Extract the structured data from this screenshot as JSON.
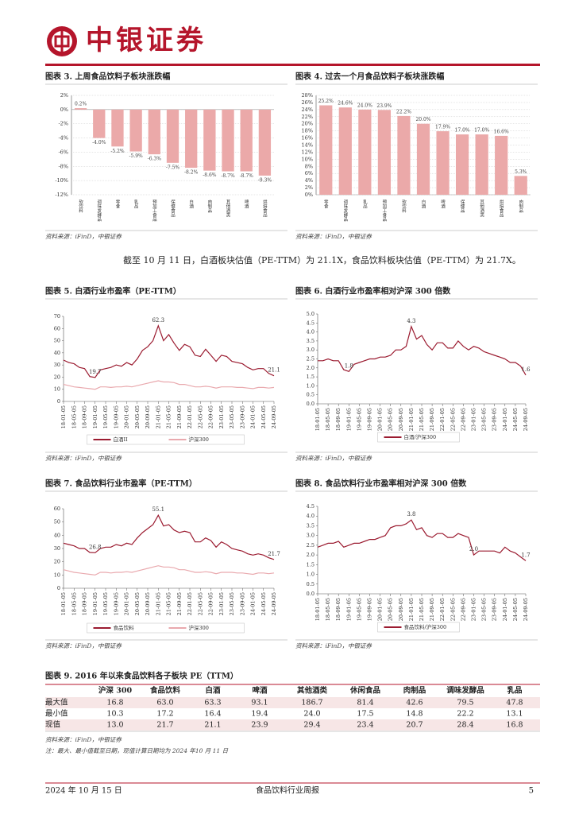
{
  "header": {
    "brand": "中银证券"
  },
  "paragraph": "截至 10 月 11 日，白酒板块估值（PE-TTM）为 21.1X，食品饮料板块估值（PE-TTM）为 21.7X。",
  "chart_data": [
    {
      "type": "bar",
      "title": "图表 3. 上周食品饮料子板块涨跌幅",
      "source": "资料来源：iFinD，中银证券",
      "color": "#eba9a9",
      "grid": true,
      "categories": [
        "软饮料",
        "调味发酵品",
        "零食",
        "乳品",
        "预加工食品",
        "保健食品",
        "白酒",
        "肉制品",
        "其他酒类",
        "啤酒",
        "烘焙食品"
      ],
      "values": [
        0.2,
        -4.0,
        -5.2,
        -5.9,
        -6.3,
        -7.5,
        -8.2,
        -8.6,
        -8.7,
        -8.7,
        -9.3
      ],
      "value_labels": [
        "0.2%",
        "-4.0%",
        "-5.2%",
        "-5.9%",
        "-6.3%",
        "-7.5%",
        "-8.2%",
        "-8.6%",
        "-8.7%",
        "-8.7%",
        "-9.3%"
      ],
      "ylim": [
        -12,
        2
      ],
      "yticks": [
        {
          "value": -12,
          "label": "-12%"
        },
        {
          "value": -10,
          "label": "-10%"
        },
        {
          "value": -8,
          "label": "-8%"
        },
        {
          "value": -6,
          "label": "-6%"
        },
        {
          "value": -4,
          "label": "-4%"
        },
        {
          "value": -2,
          "label": "-2%"
        },
        {
          "value": 0,
          "label": "0%"
        },
        {
          "value": 2,
          "label": "2%"
        }
      ]
    },
    {
      "type": "bar",
      "title": "图表 4. 过去一个月食品饮料子板块涨跌幅",
      "source": "资料来源：iFinD，中银证券",
      "color": "#eba9a9",
      "grid": true,
      "categories": [
        "零食",
        "调味发酵品",
        "乳品",
        "预加工食品",
        "软饮料",
        "白酒",
        "啤酒",
        "保健品",
        "其他酒类",
        "烘焙食品",
        "肉制品"
      ],
      "values": [
        25.2,
        24.6,
        24.0,
        23.9,
        22.2,
        20.0,
        17.9,
        17.0,
        17.0,
        16.6,
        5.3
      ],
      "value_labels": [
        "25.2%",
        "24.6%",
        "24.0%",
        "23.9%",
        "22.2%",
        "20.0%",
        "17.9%",
        "17.0%",
        "17.0%",
        "16.6%",
        "5.3%"
      ],
      "ylim": [
        0,
        28
      ],
      "yticks": [
        {
          "value": 0,
          "label": "0%"
        },
        {
          "value": 2,
          "label": "2%"
        },
        {
          "value": 4,
          "label": "4%"
        },
        {
          "value": 6,
          "label": "6%"
        },
        {
          "value": 8,
          "label": "8%"
        },
        {
          "value": 10,
          "label": "10%"
        },
        {
          "value": 12,
          "label": "12%"
        },
        {
          "value": 14,
          "label": "14%"
        },
        {
          "value": 16,
          "label": "16%"
        },
        {
          "value": 18,
          "label": "18%"
        },
        {
          "value": 20,
          "label": "20%"
        },
        {
          "value": 22,
          "label": "22%"
        },
        {
          "value": 24,
          "label": "24%"
        },
        {
          "value": 26,
          "label": "26%"
        },
        {
          "value": 28,
          "label": "28%"
        }
      ]
    },
    {
      "type": "line",
      "title": "图表 5. 白酒行业市盈率（PE-TTM）",
      "source": "资料来源：iFinD，中银证券",
      "grid": false,
      "categories": [
        "18-01-05",
        null,
        "18-05-05",
        null,
        "18-09-05",
        null,
        "19-01-05",
        null,
        "19-05-05",
        null,
        "19-09-05",
        null,
        "20-01-05",
        null,
        "20-05-05",
        null,
        "20-09-05",
        null,
        "21-01-05",
        null,
        "21-05-05",
        null,
        "21-09-05",
        null,
        "22-01-05",
        null,
        "22-05-05",
        null,
        "22-09-05",
        null,
        "23-01-05",
        null,
        "23-05-05",
        null,
        "23-09-05",
        null,
        "24-01-05",
        null,
        "24-05-05",
        null,
        "24-09-05"
      ],
      "ylim": [
        0,
        70
      ],
      "yticks": [
        0,
        10,
        20,
        30,
        40,
        50,
        60,
        70
      ],
      "series": [
        {
          "name": "白酒II",
          "color": "#9b1b30",
          "values": [
            34,
            32,
            31,
            28,
            27,
            20.5,
            19.7,
            26,
            27,
            28,
            30,
            29,
            32,
            30,
            35,
            42,
            45,
            50,
            62.3,
            50,
            55,
            48,
            42,
            47,
            45,
            38,
            37,
            43,
            38,
            33,
            38,
            37,
            33,
            32,
            31,
            28,
            26,
            27,
            27,
            23,
            21.1
          ],
          "value_labels": [
            null,
            null,
            null,
            null,
            null,
            null,
            "19.7",
            null,
            null,
            null,
            null,
            null,
            null,
            null,
            null,
            null,
            null,
            null,
            "62.3",
            null,
            null,
            null,
            null,
            null,
            null,
            null,
            null,
            null,
            null,
            null,
            null,
            null,
            null,
            null,
            null,
            null,
            null,
            null,
            null,
            null,
            "21.1"
          ]
        },
        {
          "name": "沪深300",
          "color": "#e9a9ae",
          "values": [
            14,
            13,
            12,
            11.5,
            11,
            10.5,
            10,
            12,
            12,
            11.5,
            12,
            12,
            12.5,
            12,
            13,
            14,
            15,
            16,
            17,
            16,
            16,
            15.5,
            14,
            14,
            13,
            12,
            12,
            12.5,
            12,
            11,
            12,
            12,
            12,
            11.5,
            11.5,
            11,
            10.5,
            11.5,
            11.5,
            11,
            11.5
          ]
        }
      ]
    },
    {
      "type": "line",
      "title": "图表 6. 白酒行业市盈率相对沪深 300 倍数",
      "source": "资料来源：iFinD，中银证券",
      "grid": false,
      "categories": [
        "18-01-05",
        null,
        "18-05-05",
        null,
        "18-09-05",
        null,
        "19-01-05",
        null,
        "19-05-05",
        null,
        "19-09-05",
        null,
        "20-01-05",
        null,
        "20-05-05",
        null,
        "20-09-05",
        null,
        "21-01-05",
        null,
        "21-05-05",
        null,
        "21-09-05",
        null,
        "22-01-05",
        null,
        "22-05-05",
        null,
        "22-09-05",
        null,
        "23-01-05",
        null,
        "23-05-05",
        null,
        "23-09-05",
        null,
        "24-01-05",
        null,
        "24-05-05",
        null,
        "24-09-05"
      ],
      "ylim": [
        0,
        5
      ],
      "yticks": [
        {
          "value": 0,
          "label": "0.0"
        },
        0.5,
        {
          "value": 1,
          "label": "1.0"
        },
        1.5,
        {
          "value": 2,
          "label": "2.0"
        },
        2.5,
        {
          "value": 3,
          "label": "3.0"
        },
        3.5,
        {
          "value": 4,
          "label": "4.0"
        },
        4.5,
        {
          "value": 5,
          "label": "5.0"
        }
      ],
      "series": [
        {
          "name": "白酒/沪深300",
          "color": "#9b1b30",
          "values": [
            2.4,
            2.4,
            2.5,
            2.4,
            2.4,
            1.9,
            1.8,
            2.2,
            2.3,
            2.4,
            2.5,
            2.5,
            2.6,
            2.6,
            2.7,
            3.0,
            3.0,
            3.2,
            4.3,
            3.6,
            3.8,
            3.3,
            3.0,
            3.4,
            3.4,
            3.1,
            3.1,
            3.5,
            3.2,
            3.0,
            3.2,
            3.1,
            2.9,
            2.8,
            2.7,
            2.6,
            2.5,
            2.3,
            2.3,
            2.1,
            1.6
          ],
          "value_labels": [
            null,
            null,
            null,
            null,
            null,
            null,
            "1.8",
            null,
            null,
            null,
            null,
            null,
            null,
            null,
            null,
            null,
            null,
            null,
            "4.3",
            null,
            null,
            null,
            null,
            null,
            null,
            null,
            null,
            null,
            null,
            null,
            null,
            null,
            null,
            null,
            null,
            null,
            null,
            null,
            null,
            null,
            "1.6"
          ]
        }
      ]
    },
    {
      "type": "line",
      "title": "图表 7. 食品饮料行业市盈率（PE-TTM）",
      "source": "资料来源：iFinD，中银证券",
      "grid": false,
      "categories": [
        "18-01-05",
        null,
        "18-05-05",
        null,
        "18-09-05",
        null,
        "19-01-05",
        null,
        "19-05-05",
        null,
        "19-09-05",
        null,
        "20-01-05",
        null,
        "20-05-05",
        null,
        "20-09-05",
        null,
        "21-01-05",
        null,
        "21-05-05",
        null,
        "21-09-05",
        null,
        "22-01-05",
        null,
        "22-05-05",
        null,
        "22-09-05",
        null,
        "23-01-05",
        null,
        "23-05-05",
        null,
        "23-09-05",
        null,
        "24-01-05",
        null,
        "24-05-05",
        null,
        "24-09-05"
      ],
      "ylim": [
        0,
        60
      ],
      "yticks": [
        0,
        10,
        20,
        30,
        40,
        50,
        60
      ],
      "series": [
        {
          "name": "食品饮料",
          "color": "#9b1b30",
          "values": [
            34,
            33,
            32,
            30,
            30,
            27,
            26.8,
            30,
            31,
            31,
            33,
            32,
            34,
            33,
            38,
            42,
            45,
            48,
            55.1,
            47,
            48,
            44,
            42,
            43,
            42,
            35,
            35,
            38,
            36,
            31,
            35,
            33,
            30,
            29,
            28,
            26,
            25,
            26,
            25,
            23,
            21.7
          ],
          "value_labels": [
            null,
            null,
            null,
            null,
            null,
            null,
            "26.8",
            null,
            null,
            null,
            null,
            null,
            null,
            null,
            null,
            null,
            null,
            null,
            "55.1",
            null,
            null,
            null,
            null,
            null,
            null,
            null,
            null,
            null,
            null,
            null,
            null,
            null,
            null,
            null,
            null,
            null,
            null,
            null,
            null,
            null,
            "21.7"
          ]
        },
        {
          "name": "沪深300",
          "color": "#e9a9ae",
          "values": [
            14,
            13,
            12,
            11.5,
            11,
            10.5,
            10,
            12,
            12,
            11.5,
            12,
            12,
            12.5,
            12,
            13,
            14,
            15,
            16,
            17,
            16,
            16,
            15.5,
            14,
            14,
            13,
            12,
            12,
            12.5,
            12,
            11,
            12,
            12,
            12,
            11.5,
            11.5,
            11,
            10.5,
            11.5,
            11.5,
            11,
            11.5
          ]
        }
      ]
    },
    {
      "type": "line",
      "title": "图表 8. 食品饮料行业市盈率相对沪深 300 倍数",
      "source": "资料来源：iFinD，中银证券",
      "grid": false,
      "categories": [
        "18-01-05",
        null,
        "18-05-05",
        null,
        "18-09-05",
        null,
        "19-01-05",
        null,
        "19-05-05",
        null,
        "19-09-05",
        null,
        "20-01-05",
        null,
        "20-05-05",
        null,
        "20-09-05",
        null,
        "21-01-05",
        null,
        "21-05-05",
        null,
        "21-09-05",
        null,
        "22-01-05",
        null,
        "22-05-05",
        null,
        "22-09-05",
        null,
        "23-01-05",
        null,
        "23-05-05",
        null,
        "23-09-05",
        null,
        "24-01-05",
        null,
        "24-05-05",
        null,
        "24-09-05"
      ],
      "ylim": [
        0,
        4.5
      ],
      "yticks": [
        {
          "value": 0,
          "label": "0.0"
        },
        0.5,
        {
          "value": 1,
          "label": "1.0"
        },
        1.5,
        {
          "value": 2,
          "label": "2.0"
        },
        2.5,
        {
          "value": 3,
          "label": "3.0"
        },
        3.5,
        {
          "value": 4,
          "label": "4.0"
        },
        4.5
      ],
      "series": [
        {
          "name": "食品饮料/沪深300",
          "color": "#9b1b30",
          "values": [
            2.4,
            2.5,
            2.6,
            2.6,
            2.7,
            2.4,
            2.5,
            2.6,
            2.6,
            2.7,
            2.8,
            2.8,
            2.9,
            3.0,
            3.4,
            3.5,
            3.5,
            3.6,
            3.8,
            3.3,
            3.4,
            3.0,
            2.9,
            3.1,
            3.1,
            2.9,
            2.9,
            3.1,
            3.0,
            2.9,
            2.0,
            2.2,
            2.2,
            2.2,
            2.2,
            2.1,
            2.4,
            2.2,
            2.1,
            1.9,
            1.7
          ],
          "value_labels": [
            null,
            null,
            null,
            null,
            null,
            null,
            null,
            null,
            null,
            null,
            null,
            null,
            null,
            null,
            null,
            null,
            null,
            null,
            "3.8",
            null,
            null,
            null,
            null,
            null,
            null,
            null,
            null,
            null,
            null,
            null,
            "2.0",
            null,
            null,
            null,
            null,
            null,
            null,
            null,
            null,
            null,
            "1.7"
          ]
        }
      ]
    }
  ],
  "table": {
    "title": "图表 9. 2016 年以来食品饮料各子板块 PE（TTM）",
    "columns": [
      "沪深 300",
      "食品饮料",
      "白酒",
      "啤酒",
      "其他酒类",
      "休闲食品",
      "肉制品",
      "调味发酵品",
      "乳品"
    ],
    "rows": [
      [
        "最大值",
        "16.8",
        "63.0",
        "63.3",
        "93.1",
        "186.7",
        "81.4",
        "42.6",
        "79.5",
        "47.8"
      ],
      [
        "最小值",
        "10.3",
        "17.2",
        "16.4",
        "19.4",
        "24.0",
        "17.5",
        "14.8",
        "22.2",
        "13.1"
      ],
      [
        "现值",
        "13.0",
        "21.7",
        "21.1",
        "23.9",
        "29.4",
        "23.4",
        "20.7",
        "28.4",
        "16.8"
      ]
    ],
    "source": "资料来源：iFinD，中银证券",
    "note": "注：最大、最小值截至日期，现值计算日期均为 2024 年10 月 11 日"
  },
  "footer": {
    "date": "2024 年 10 月 15 日",
    "report": "食品饮料行业周报",
    "page": "5"
  }
}
